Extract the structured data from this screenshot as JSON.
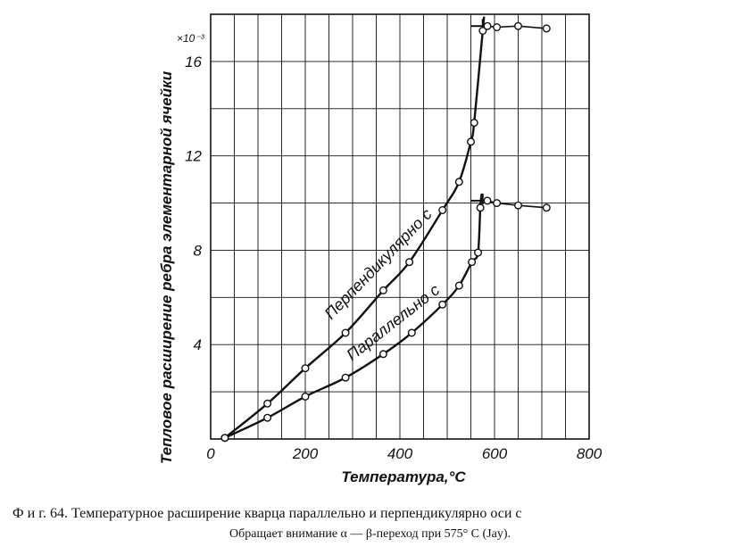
{
  "chart_data": {
    "type": "line",
    "xlabel": "Температура,°C",
    "ylabel": "Тепловое расширение ребра элементарной ячейки",
    "y_multiplier": "×10⁻³",
    "xlim": [
      0,
      800
    ],
    "ylim": [
      0,
      18
    ],
    "xticks": [
      "0",
      "200",
      "400",
      "600",
      "800"
    ],
    "yticks": [
      "4",
      "8",
      "12",
      "16"
    ],
    "x_tick_values": [
      0,
      200,
      400,
      600,
      800
    ],
    "y_tick_values": [
      4,
      8,
      12,
      16
    ],
    "grid": true,
    "series": [
      {
        "name": "Перпендикулярно c",
        "points": [
          [
            30,
            0.05
          ],
          [
            120,
            1.5
          ],
          [
            200,
            3.0
          ],
          [
            285,
            4.5
          ],
          [
            365,
            6.3
          ],
          [
            420,
            7.5
          ],
          [
            490,
            9.7
          ],
          [
            525,
            10.9
          ],
          [
            550,
            12.6
          ],
          [
            557,
            13.4
          ],
          [
            575,
            17.3
          ]
        ],
        "beta_points": [
          [
            585,
            17.5
          ],
          [
            605,
            17.45
          ],
          [
            650,
            17.5
          ],
          [
            710,
            17.4
          ]
        ]
      },
      {
        "name": "Параллельно c",
        "points": [
          [
            30,
            0.05
          ],
          [
            120,
            0.9
          ],
          [
            200,
            1.8
          ],
          [
            285,
            2.6
          ],
          [
            365,
            3.6
          ],
          [
            425,
            4.5
          ],
          [
            490,
            5.7
          ],
          [
            525,
            6.5
          ],
          [
            552,
            7.5
          ],
          [
            565,
            7.9
          ],
          [
            570,
            9.8
          ]
        ],
        "beta_points": [
          [
            585,
            10.1
          ],
          [
            605,
            10.0
          ],
          [
            650,
            9.9
          ],
          [
            710,
            9.8
          ]
        ]
      }
    ],
    "transition_temperature": 575
  },
  "caption": {
    "line1": "Ф и г.  64.  Температурное расширение кварца параллельно и перпендикулярно оси c",
    "line2": "Обращает внимание α — β-переход  при  575° С  (Jay)."
  }
}
